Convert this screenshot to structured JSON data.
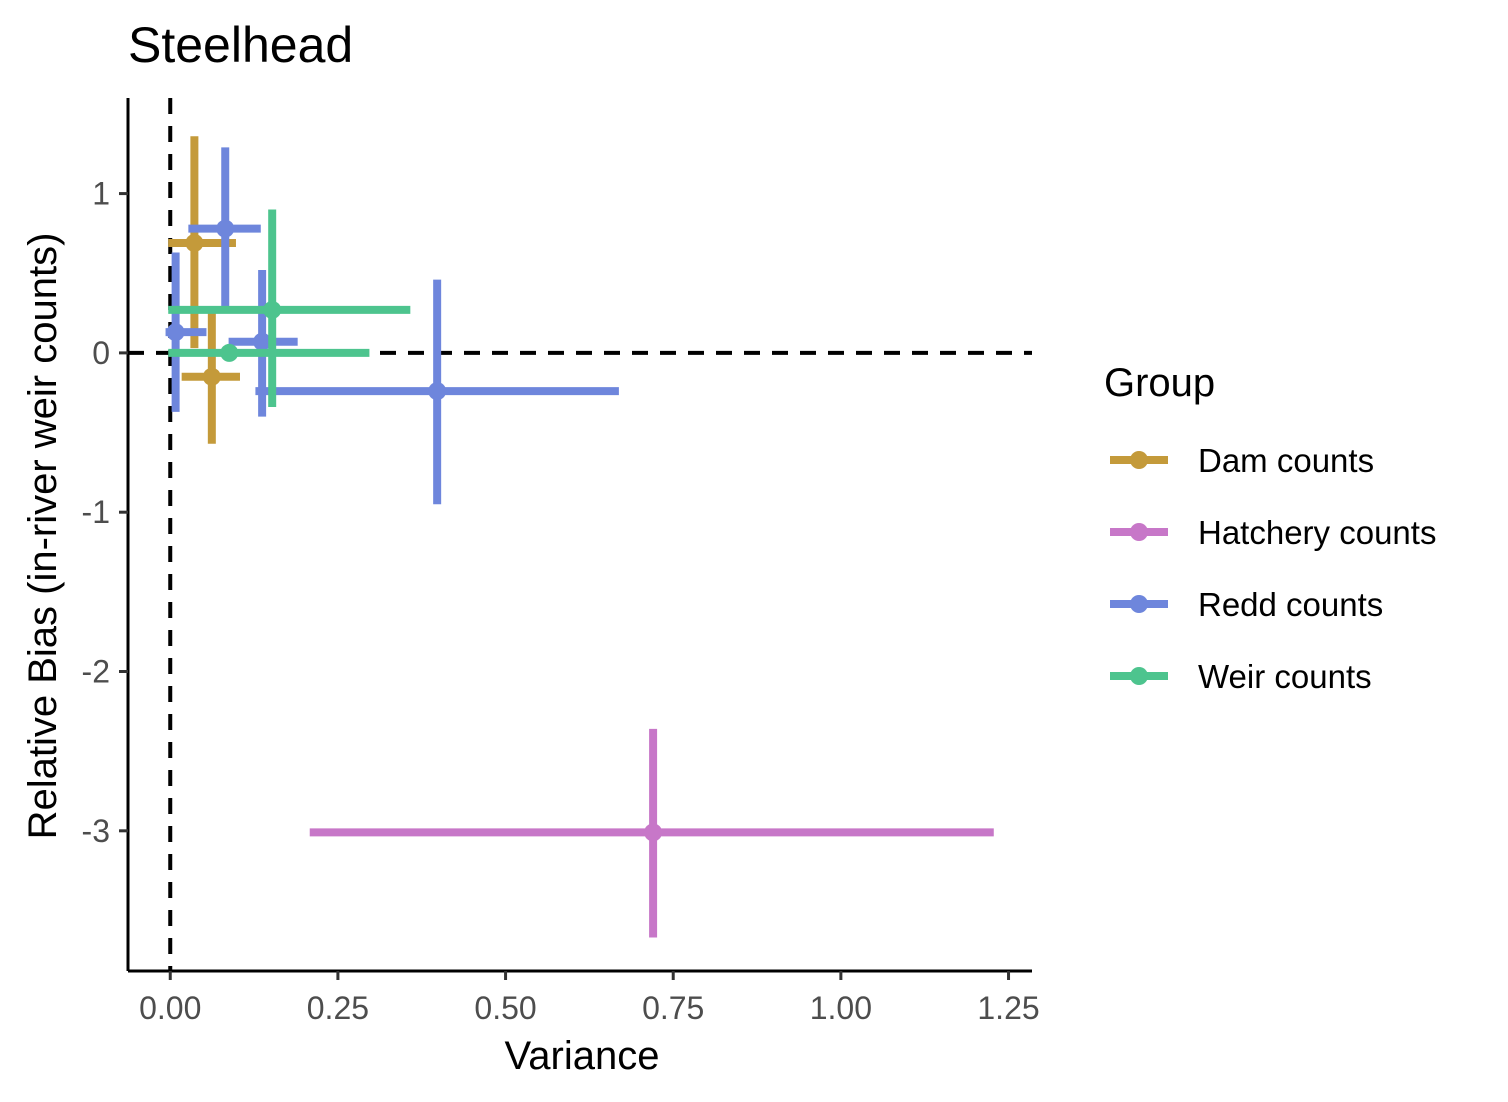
{
  "chart_data": {
    "type": "scatter",
    "title": "Steelhead",
    "xlabel": "Variance",
    "ylabel": "Relative Bias (in-river weir counts)",
    "xlim": [
      -0.063,
      1.285
    ],
    "ylim": [
      -3.88,
      1.6
    ],
    "x_ticks": [
      0.0,
      0.25,
      0.5,
      0.75,
      1.0,
      1.25
    ],
    "x_tick_labels": [
      "0.00",
      "0.25",
      "0.50",
      "0.75",
      "1.00",
      "1.25"
    ],
    "y_ticks": [
      1,
      0,
      -1,
      -2,
      -3
    ],
    "y_tick_labels": [
      "1",
      "0",
      "-1",
      "-2",
      "-3"
    ],
    "reference_lines": {
      "x": 0,
      "y": 0,
      "style": "dashed"
    },
    "grid": false,
    "legend": {
      "title": "Group",
      "placement": "right",
      "entries": [
        "Dam counts",
        "Hatchery counts",
        "Redd counts",
        "Weir counts"
      ]
    },
    "series": [
      {
        "name": "Dam counts",
        "color": "#c49a3a",
        "points": [
          {
            "x": 0.036,
            "y": 0.69,
            "xmin": -0.003,
            "xmax": 0.098,
            "ymin": 0.03,
            "ymax": 1.36
          },
          {
            "x": 0.062,
            "y": -0.15,
            "xmin": 0.017,
            "xmax": 0.104,
            "ymin": -0.57,
            "ymax": 0.26
          }
        ]
      },
      {
        "name": "Hatchery counts",
        "color": "#c777c8",
        "points": [
          {
            "x": 0.72,
            "y": -3.01,
            "xmin": 0.208,
            "xmax": 1.228,
            "ymin": -3.67,
            "ymax": -2.36
          }
        ]
      },
      {
        "name": "Redd counts",
        "color": "#6e86dc",
        "points": [
          {
            "x": 0.082,
            "y": 0.78,
            "xmin": 0.027,
            "xmax": 0.135,
            "ymin": 0.25,
            "ymax": 1.29
          },
          {
            "x": 0.008,
            "y": 0.13,
            "xmin": -0.007,
            "xmax": 0.054,
            "ymin": -0.37,
            "ymax": 0.63
          },
          {
            "x": 0.137,
            "y": 0.07,
            "xmin": 0.087,
            "xmax": 0.19,
            "ymin": -0.4,
            "ymax": 0.52
          },
          {
            "x": 0.398,
            "y": -0.24,
            "xmin": 0.127,
            "xmax": 0.669,
            "ymin": -0.95,
            "ymax": 0.46
          }
        ]
      },
      {
        "name": "Weir counts",
        "color": "#4dc48e",
        "points": [
          {
            "x": 0.152,
            "y": 0.27,
            "xmin": -0.003,
            "xmax": 0.358,
            "ymin": -0.34,
            "ymax": 0.9
          },
          {
            "x": 0.088,
            "y": 0.0,
            "xmin": -0.003,
            "xmax": 0.297,
            "ymin": 0.0,
            "ymax": 0.0
          }
        ]
      }
    ]
  }
}
